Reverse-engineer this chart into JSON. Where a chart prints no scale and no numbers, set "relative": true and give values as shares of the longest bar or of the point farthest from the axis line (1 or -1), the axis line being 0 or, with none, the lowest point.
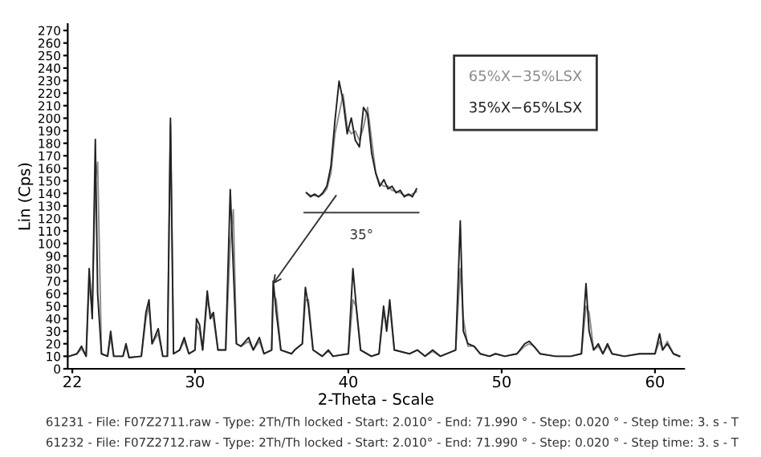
{
  "chart_data": [
    {
      "type": "line",
      "xlabel": "2-Theta - Scale",
      "ylabel": "Lin (Cps)",
      "xlim": [
        21.7,
        61.9
      ],
      "ylim": [
        0,
        275
      ],
      "xticks": [
        22,
        30,
        40,
        50,
        60
      ],
      "yticks": [
        0,
        10,
        20,
        30,
        40,
        50,
        60,
        70,
        80,
        90,
        100,
        110,
        120,
        130,
        140,
        150,
        160,
        170,
        180,
        190,
        200,
        210,
        220,
        230,
        240,
        250,
        260,
        270
      ],
      "grid": false,
      "legend": "top right",
      "marker": "none",
      "line_style": "solid",
      "x": [
        21.8,
        22.3,
        22.6,
        22.9,
        23.1,
        23.3,
        23.5,
        23.65,
        23.9,
        24.3,
        24.5,
        24.7,
        25.3,
        25.5,
        25.7,
        26.5,
        26.8,
        27.0,
        27.2,
        27.6,
        27.9,
        28.2,
        28.4,
        28.6,
        29.0,
        29.3,
        29.6,
        30.0,
        30.1,
        30.3,
        30.5,
        30.8,
        31.0,
        31.2,
        31.5,
        32.0,
        32.3,
        32.5,
        32.7,
        33.0,
        33.5,
        33.8,
        34.2,
        34.5,
        35.0,
        35.1,
        35.3,
        35.6,
        36.3,
        36.5,
        37.0,
        37.2,
        37.4,
        37.7,
        38.3,
        38.7,
        39.0,
        40.0,
        40.3,
        40.5,
        40.8,
        41.5,
        42.0,
        42.3,
        42.5,
        42.7,
        43.0,
        44.0,
        44.5,
        45.0,
        45.5,
        46.0,
        47.0,
        47.3,
        47.5,
        47.8,
        48.2,
        48.6,
        49.2,
        49.6,
        50.2,
        51.0,
        51.5,
        51.8,
        52.1,
        52.5,
        53.5,
        54.5,
        55.2,
        55.5,
        55.7,
        56.0,
        56.3,
        56.6,
        56.9,
        57.2,
        58.0,
        59.0,
        60.0,
        60.3,
        60.5,
        60.8,
        61.2,
        61.6
      ],
      "series": [
        {
          "name": "65%X−35%LSX",
          "color": "#8c8c8c",
          "values": [
            10,
            12,
            16,
            10,
            70,
            45,
            150,
            165,
            12,
            10,
            25,
            10,
            10,
            18,
            9,
            10,
            40,
            50,
            20,
            28,
            10,
            10,
            195,
            12,
            15,
            22,
            12,
            15,
            35,
            30,
            15,
            55,
            45,
            40,
            15,
            15,
            100,
            127,
            20,
            18,
            22,
            15,
            22,
            12,
            15,
            60,
            55,
            15,
            12,
            15,
            20,
            55,
            55,
            15,
            10,
            14,
            10,
            12,
            55,
            50,
            15,
            10,
            12,
            45,
            35,
            50,
            15,
            12,
            15,
            10,
            14,
            10,
            15,
            80,
            40,
            18,
            18,
            12,
            10,
            12,
            10,
            12,
            18,
            20,
            18,
            12,
            10,
            10,
            12,
            50,
            45,
            15,
            18,
            12,
            18,
            12,
            10,
            12,
            12,
            22,
            15,
            22,
            12,
            10
          ]
        },
        {
          "name": "35%X−65%LSX",
          "color": "#222222",
          "values": [
            10,
            12,
            18,
            10,
            80,
            40,
            183,
            60,
            12,
            10,
            30,
            10,
            10,
            20,
            9,
            10,
            45,
            55,
            20,
            32,
            10,
            10,
            200,
            12,
            15,
            25,
            12,
            15,
            40,
            35,
            15,
            62,
            40,
            45,
            15,
            15,
            143,
            80,
            20,
            18,
            25,
            15,
            25,
            12,
            15,
            70,
            45,
            15,
            12,
            15,
            20,
            65,
            50,
            15,
            10,
            15,
            10,
            12,
            80,
            52,
            15,
            10,
            12,
            50,
            30,
            55,
            15,
            12,
            15,
            10,
            15,
            10,
            15,
            118,
            30,
            20,
            18,
            12,
            10,
            12,
            10,
            12,
            20,
            22,
            18,
            12,
            10,
            10,
            12,
            68,
            30,
            15,
            20,
            12,
            20,
            12,
            10,
            12,
            12,
            28,
            15,
            20,
            12,
            10
          ]
        }
      ],
      "annotations": [
        "61231 - File: F07Z2711.raw - Type: 2Th/Th locked - Start: 2.010° - End: 71.990 ° - Step: 0.020 ° - Step time: 3. s - T",
        "61232 - File: F07Z2712.raw - Type: 2Th/Th locked - Start: 2.010° - End: 71.990 ° - Step: 0.020 ° - Step time: 3. s - T"
      ]
    },
    {
      "type": "line",
      "relative": true,
      "grid": false,
      "categories": [
        null,
        null,
        null,
        null,
        null,
        null,
        null,
        null,
        null,
        null,
        null,
        null,
        null,
        null,
        null,
        null,
        null,
        null,
        null,
        null,
        null,
        null,
        null,
        null,
        null,
        null,
        null,
        null
      ],
      "series": [
        {
          "color": "#8c8c8c",
          "values": [
            0.15,
            0.13,
            0.13,
            0.12,
            0.14,
            0.18,
            0.3,
            0.6,
            0.75,
            0.9,
            0.65,
            0.6,
            0.62,
            0.55,
            0.65,
            0.8,
            0.55,
            0.3,
            0.22,
            0.2,
            0.2,
            0.17,
            0.16,
            0.15,
            0.13,
            0.13,
            0.14,
            0.16
          ]
        },
        {
          "color": "#222222",
          "values": [
            0.15,
            0.12,
            0.14,
            0.12,
            0.15,
            0.2,
            0.35,
            0.7,
            1.0,
            0.85,
            0.6,
            0.72,
            0.55,
            0.5,
            0.8,
            0.75,
            0.45,
            0.3,
            0.2,
            0.25,
            0.18,
            0.2,
            0.15,
            0.17,
            0.12,
            0.14,
            0.12,
            0.18
          ]
        }
      ],
      "annotations": [
        "35°"
      ]
    }
  ]
}
